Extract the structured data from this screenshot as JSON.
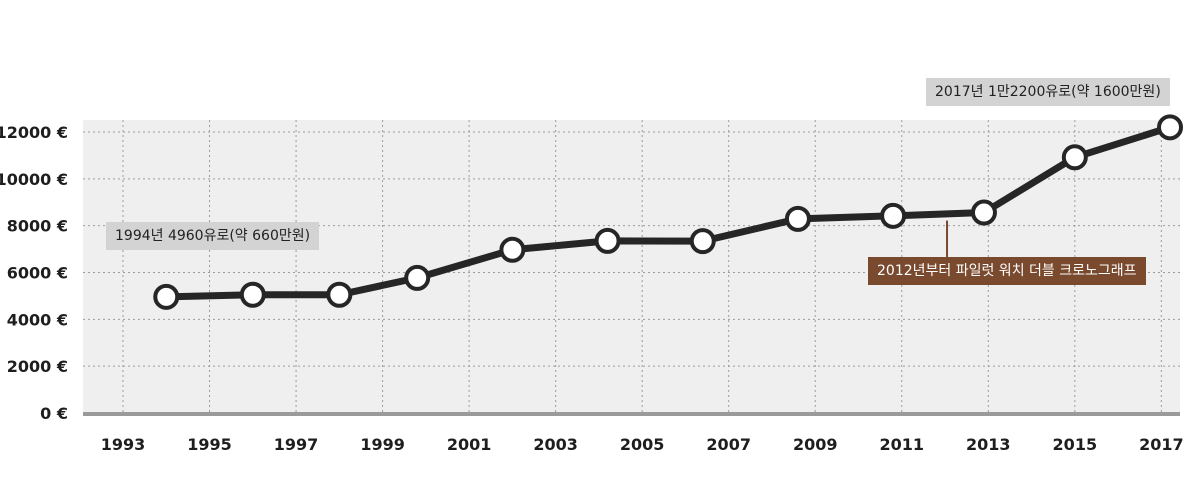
{
  "chart_data": {
    "type": "line",
    "title": "",
    "xlabel": "",
    "ylabel": "",
    "x": [
      1993,
      1994,
      1995,
      1996,
      1997,
      1998,
      1999,
      2000,
      2001,
      2002,
      2003,
      2004,
      2005,
      2006,
      2007,
      2008,
      2009,
      2010,
      2011,
      2012,
      2013,
      2014,
      2015,
      2016,
      2017
    ],
    "x_tick_labels": [
      "1993",
      "1995",
      "1997",
      "1999",
      "2001",
      "2003",
      "2005",
      "2007",
      "2009",
      "2011",
      "2013",
      "2015",
      "2017"
    ],
    "y_tick_labels": [
      "0 €",
      "2000 €",
      "4000 €",
      "6000 €",
      "8000 €",
      "10000 €",
      "12000 €"
    ],
    "ylim": [
      0,
      12000
    ],
    "grid": true,
    "series": [
      {
        "points": [
          [
            1994,
            4960
          ],
          [
            1996,
            5050
          ],
          [
            1998,
            5050
          ],
          [
            1999.8,
            5770
          ],
          [
            2002,
            6970
          ],
          [
            2004.2,
            7350
          ],
          [
            2006.4,
            7340
          ],
          [
            2008.6,
            8290
          ],
          [
            2010.8,
            8420
          ],
          [
            2012.9,
            8560
          ],
          [
            2015,
            10920
          ],
          [
            2017.2,
            12200
          ]
        ]
      }
    ],
    "annotations": [
      {
        "text": "1994년 4960유로(약 660만원)",
        "style": "gray"
      },
      {
        "text": "2017년 1만2200유로(약 1600만원)",
        "style": "gray"
      },
      {
        "text": "2012년부터 파일럿 워치 더블 크로노그래프",
        "style": "brown"
      }
    ],
    "colors": {
      "plot_bg": "#efefef",
      "line": "#262626",
      "marker_fill": "#ffffff",
      "baseline": "#9a9a9a",
      "annotation_gray": "#d3d3d3",
      "annotation_brown": "#7a4a2e"
    }
  }
}
